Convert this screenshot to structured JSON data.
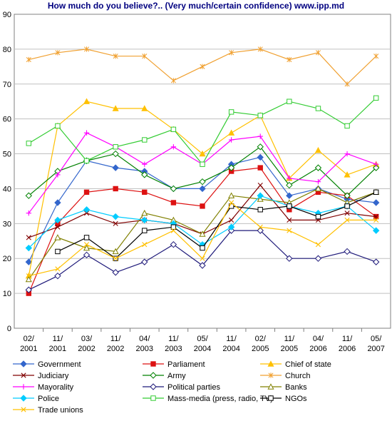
{
  "chart_data": {
    "type": "line",
    "title": "How much do you believe?.. (Very much/certain confidence) www.ipp.md",
    "xlabel": "",
    "ylabel": "",
    "categories": [
      [
        "02/",
        "2001"
      ],
      [
        "11/",
        "2001"
      ],
      [
        "03/",
        "2002"
      ],
      [
        "11/",
        "2002"
      ],
      [
        "04/",
        "2003"
      ],
      [
        "11/",
        "2003"
      ],
      [
        "05/",
        "2004"
      ],
      [
        "11/",
        "2004"
      ],
      [
        "02/",
        "2005"
      ],
      [
        "11/",
        "2005"
      ],
      [
        "04/",
        "2006"
      ],
      [
        "11/",
        "2006"
      ],
      [
        "05/",
        "2007"
      ]
    ],
    "ylim": [
      0,
      90
    ],
    "yticks": [
      0,
      10,
      20,
      30,
      40,
      50,
      60,
      70,
      80,
      90
    ],
    "grid": true,
    "legend_position": "bottom",
    "series": [
      {
        "name": "Government",
        "color": "#3366cc",
        "marker": "diamond-filled",
        "values": [
          19,
          36,
          48,
          46,
          45,
          40,
          40,
          47,
          49,
          38,
          40,
          37,
          36
        ]
      },
      {
        "name": "Parliament",
        "color": "#dd1111",
        "marker": "square-filled",
        "values": [
          10,
          30,
          39,
          40,
          39,
          36,
          35,
          45,
          46,
          34,
          39,
          38,
          32
        ]
      },
      {
        "name": "Chief of state",
        "color": "#ffc000",
        "marker": "triangle-filled",
        "values": [
          15,
          58,
          65,
          63,
          63,
          57,
          50,
          56,
          61,
          43,
          51,
          44,
          47
        ]
      },
      {
        "name": "Judiciary",
        "color": "#800000",
        "marker": "x",
        "values": [
          26,
          29,
          33,
          30,
          31,
          30,
          27,
          31,
          41,
          31,
          31,
          33,
          32
        ]
      },
      {
        "name": "Army",
        "color": "#008000",
        "marker": "diamond-open",
        "values": [
          38,
          45,
          48,
          50,
          44,
          40,
          42,
          46,
          52,
          41,
          46,
          38,
          46
        ]
      },
      {
        "name": "Church",
        "color": "#f0a030",
        "marker": "asterisk",
        "values": [
          77,
          79,
          80,
          78,
          78,
          71,
          75,
          79,
          80,
          77,
          79,
          70,
          78
        ]
      },
      {
        "name": "Mayorality",
        "color": "#ff00ff",
        "marker": "plus",
        "values": [
          33,
          44,
          56,
          52,
          47,
          52,
          47,
          54,
          55,
          43,
          42,
          50,
          47
        ]
      },
      {
        "name": "Political parties",
        "color": "#1f1a7a",
        "marker": "diamond-open",
        "values": [
          11,
          15,
          21,
          16,
          19,
          24,
          18,
          28,
          28,
          20,
          20,
          22,
          19
        ]
      },
      {
        "name": "Banks",
        "color": "#808000",
        "marker": "triangle-open",
        "values": [
          14,
          26,
          23,
          22,
          33,
          31,
          27,
          38,
          37,
          36,
          40,
          36,
          39
        ]
      },
      {
        "name": "Police",
        "color": "#00ccff",
        "marker": "diamond-filled",
        "values": [
          23,
          31,
          34,
          32,
          31,
          30,
          24,
          29,
          38,
          35,
          33,
          35,
          28
        ]
      },
      {
        "name": "Mass-media (press, radio, TV)",
        "color": "#33cc33",
        "marker": "square-open",
        "values": [
          53,
          58,
          48,
          52,
          54,
          57,
          47,
          62,
          61,
          65,
          63,
          58,
          66
        ]
      },
      {
        "name": "NGOs",
        "color": "#000000",
        "marker": "square-open",
        "values": [
          null,
          22,
          26,
          20,
          28,
          29,
          23,
          35,
          34,
          35,
          32,
          35,
          39
        ]
      },
      {
        "name": "Trade unions",
        "color": "#ffc000",
        "marker": "x",
        "values": [
          15,
          17,
          24,
          20,
          24,
          28,
          20,
          36,
          29,
          28,
          24,
          31,
          31
        ]
      }
    ]
  }
}
